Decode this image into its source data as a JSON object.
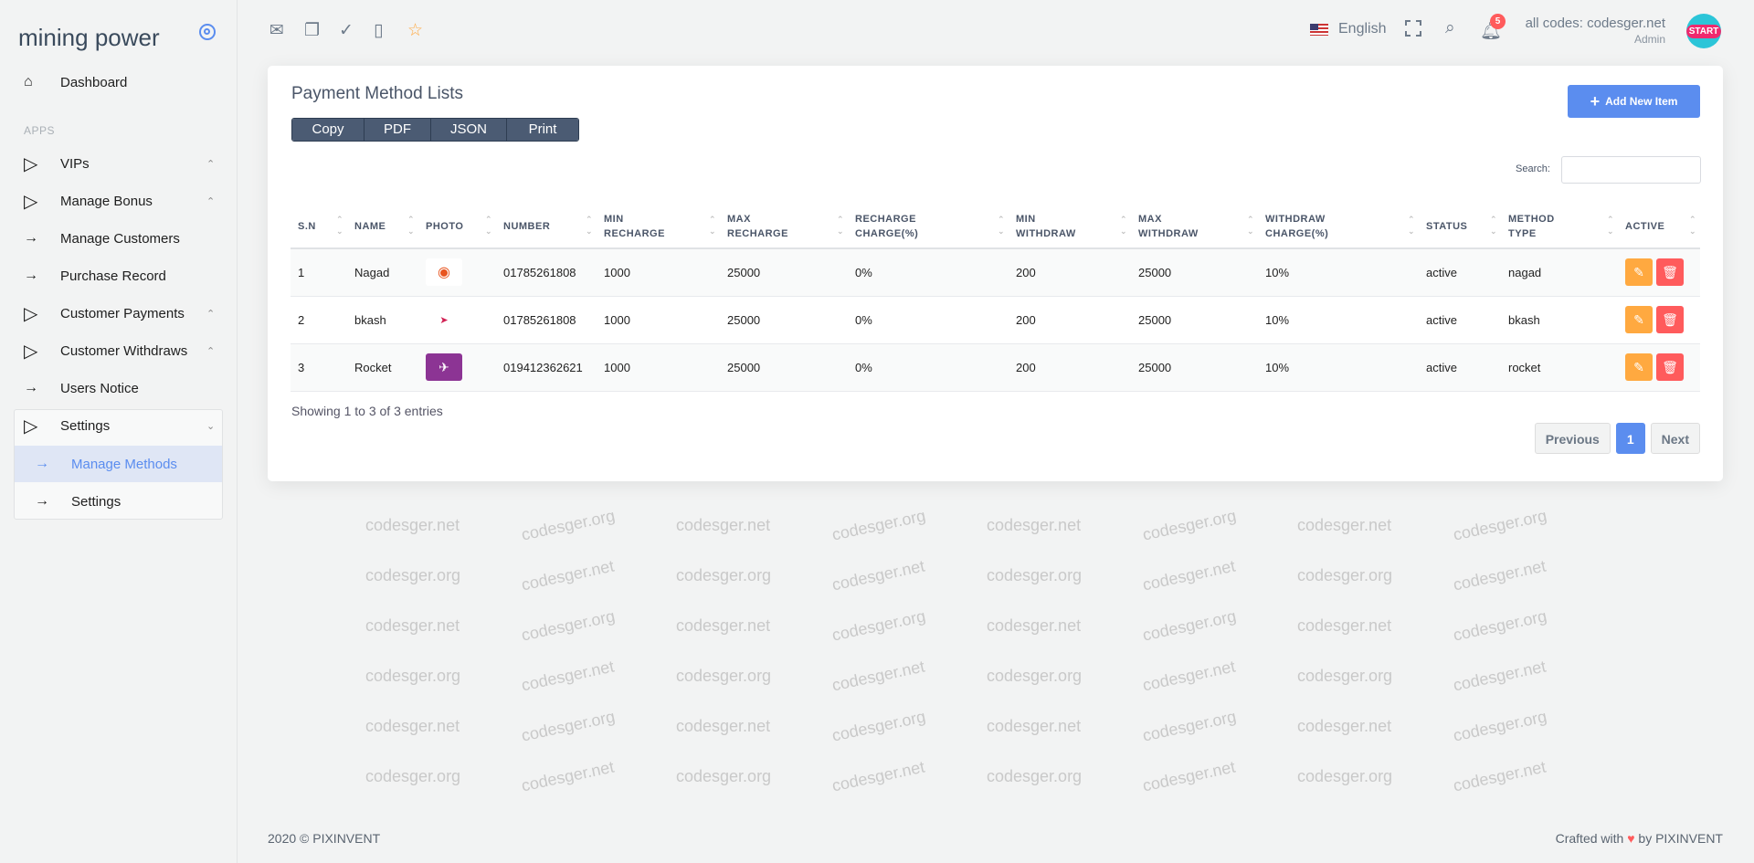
{
  "brand": "mining power",
  "sidebar": {
    "dashboard": "Dashboard",
    "section": "APPS",
    "items": [
      {
        "label": "VIPs",
        "icon": "play-outline-icon",
        "chevron": "^"
      },
      {
        "label": "Manage Bonus",
        "icon": "play-outline-icon",
        "chevron": "^"
      },
      {
        "label": "Manage Customers",
        "icon": "arrow-right-icon"
      },
      {
        "label": "Purchase Record",
        "icon": "arrow-right-icon"
      },
      {
        "label": "Customer Payments",
        "icon": "play-outline-icon",
        "chevron": "^"
      },
      {
        "label": "Customer Withdraws",
        "icon": "play-outline-icon",
        "chevron": "^"
      },
      {
        "label": "Users Notice",
        "icon": "arrow-right-icon"
      },
      {
        "label": "Settings",
        "icon": "play-outline-icon",
        "chevron": "v"
      }
    ],
    "sub": [
      {
        "label": "Manage Methods",
        "active": true
      },
      {
        "label": "Settings"
      }
    ]
  },
  "topbar": {
    "language": "English",
    "notifications": "5",
    "user": "all codes: codesger.net",
    "role": "Admin",
    "avatar": "START"
  },
  "card": {
    "title": "Payment Method Lists",
    "buttons": [
      "Copy",
      "PDF",
      "JSON",
      "Print"
    ],
    "add": "Add New Item",
    "search_label": "Search:",
    "search_value": "",
    "columns": [
      [
        "S.N",
        ""
      ],
      [
        "NAME",
        ""
      ],
      [
        "PHOTO",
        ""
      ],
      [
        "NUMBER",
        ""
      ],
      [
        "MIN",
        "RECHARGE"
      ],
      [
        "MAX",
        "RECHARGE"
      ],
      [
        "RECHARGE",
        "CHARGE(%)"
      ],
      [
        "MIN",
        "WITHDRAW"
      ],
      [
        "MAX",
        "WITHDRAW"
      ],
      [
        "WITHDRAW",
        "CHARGE(%)"
      ],
      [
        "STATUS",
        ""
      ],
      [
        "METHOD",
        "TYPE"
      ],
      [
        "ACTIVE",
        ""
      ]
    ],
    "rows": [
      [
        "1",
        "Nagad",
        "nagad-logo",
        "01785261808",
        "1000",
        "25000",
        "0%",
        "200",
        "25000",
        "10%",
        "active",
        "nagad"
      ],
      [
        "2",
        "bkash",
        "bkash-logo",
        "01785261808",
        "1000",
        "25000",
        "0%",
        "200",
        "25000",
        "10%",
        "active",
        "bkash"
      ],
      [
        "3",
        "Rocket",
        "rocket-logo",
        "019412362621",
        "1000",
        "25000",
        "0%",
        "200",
        "25000",
        "10%",
        "active",
        "rocket"
      ]
    ],
    "showing": "Showing 1 to 3 of 3 entries",
    "prev": "Previous",
    "page": "1",
    "next": "Next"
  },
  "footer": {
    "left": "2020 © PIXINVENT",
    "right_a": "Crafted with",
    "right_b": "by PIXINVENT"
  },
  "watermarks": [
    "codesger.net",
    "codesger.org"
  ],
  "colors": {
    "accent": "#5b8def",
    "edit": "#ffa940",
    "delete": "#ff5b5c",
    "buttons": "#4b5b73"
  }
}
